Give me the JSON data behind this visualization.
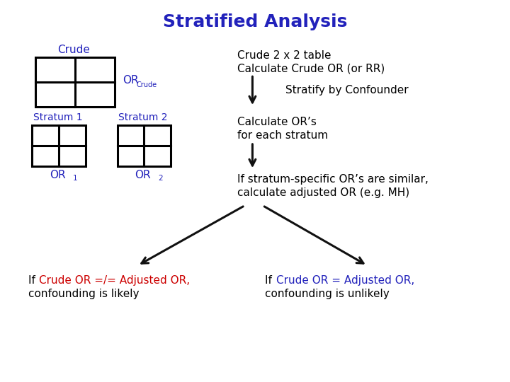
{
  "title": "Stratified Analysis",
  "title_color": "#2222BB",
  "title_fontsize": 18,
  "bg_color": "#FFFFFF",
  "blue_color": "#2222BB",
  "red_color": "#CC0000",
  "black_color": "#000000",
  "arrow_color": "#111111",
  "crude_label": "Crude",
  "or_crude_main": "OR",
  "or_crude_sub": "Crude",
  "stratum1_label": "Stratum 1",
  "stratum2_label": "Stratum 2",
  "or1_main": "OR",
  "or1_sub": "1",
  "or2_main": "OR",
  "or2_sub": "2",
  "text_crude_2x2": "Crude 2 x 2 table",
  "text_calc_crude": "Calculate Crude OR (or RR)",
  "text_stratify": "Stratify by Confounder",
  "text_calc_ors_1": "Calculate OR’s",
  "text_calc_ors_2": "for each stratum",
  "text_stratum_spec_1": "If stratum-specific OR’s are similar,",
  "text_stratum_spec_2": "calculate adjusted OR (e.g. MH)",
  "text_left_if": "If ",
  "text_left_colored": "Crude OR =/= Adjusted OR,",
  "text_left_2": "confounding is likely",
  "text_right_if": "If ",
  "text_right_colored": "Crude OR = Adjusted OR,",
  "text_right_2": "confounding is unlikely"
}
